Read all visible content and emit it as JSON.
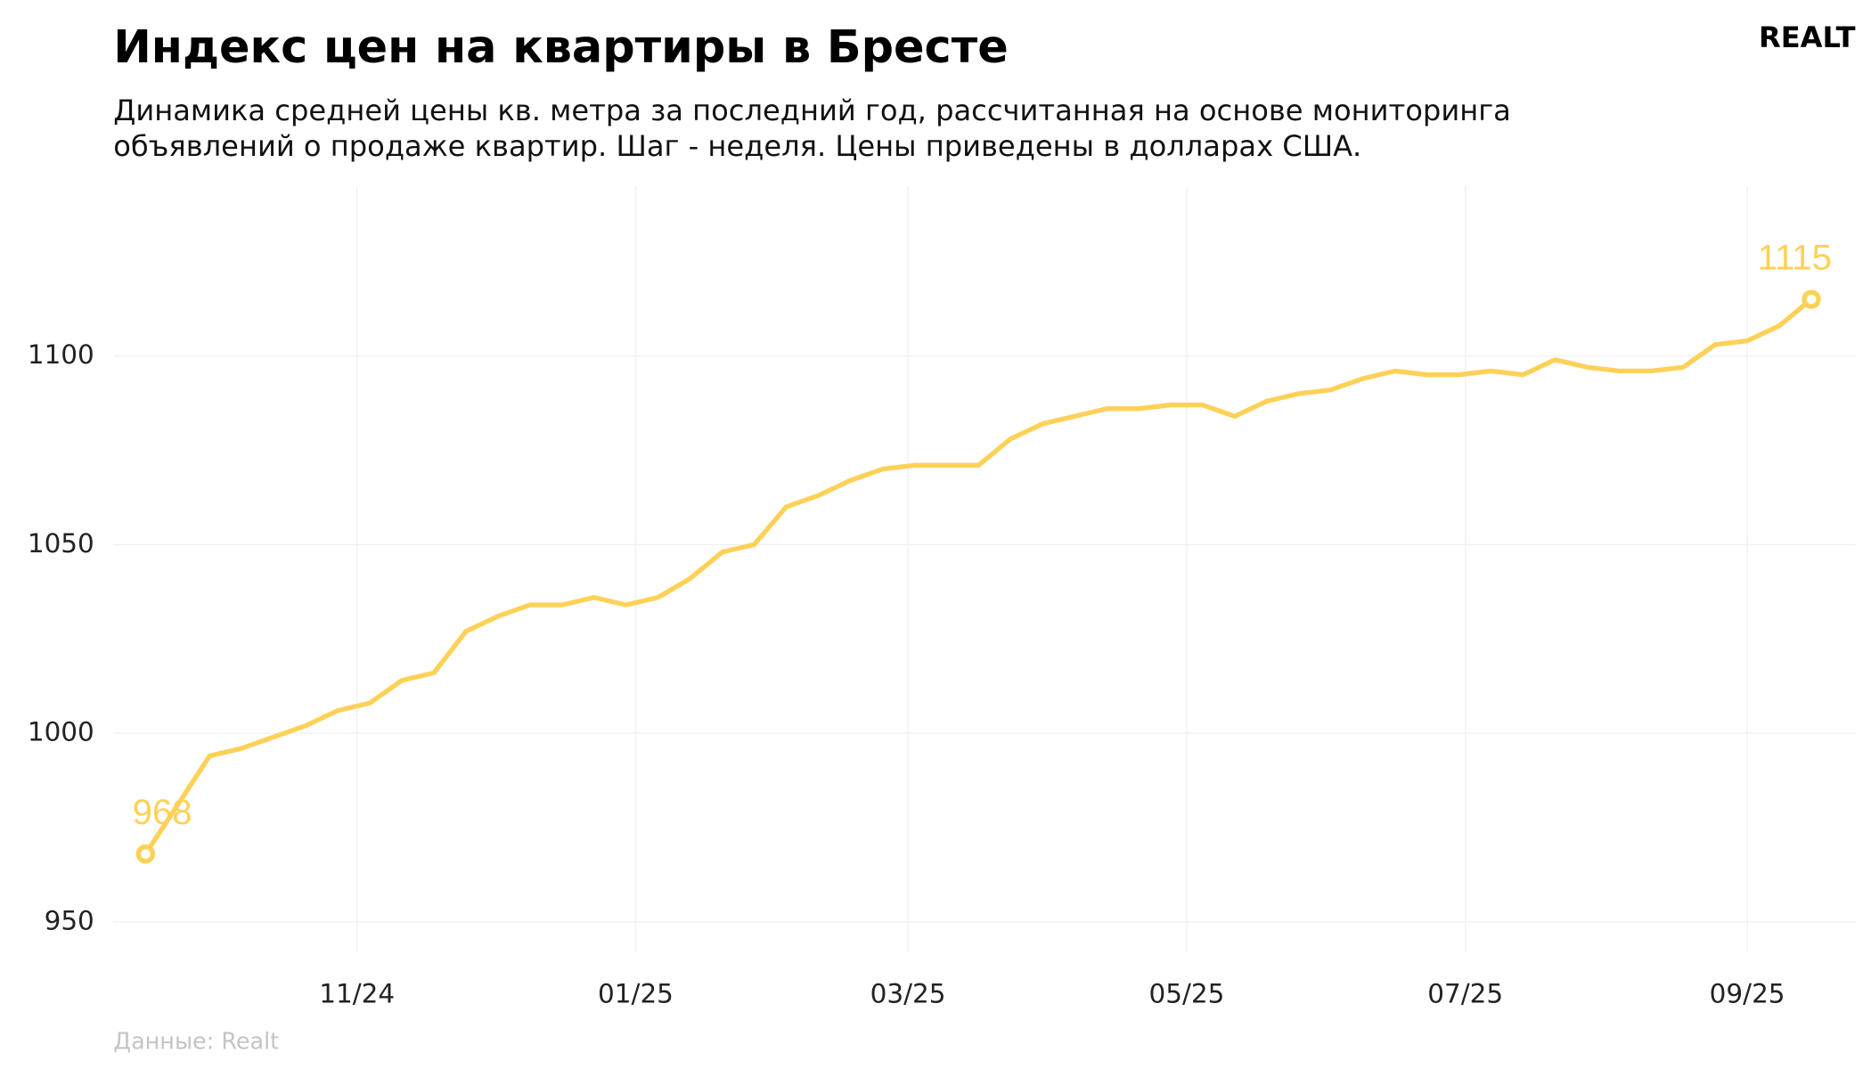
{
  "chart_data": {
    "type": "line",
    "title": "Индекс цен на квартиры в Бресте",
    "subtitle": [
      "Динамика средней цены кв. метра за последний год, рассчитанная на основе мониторинга",
      "объявлений о продаже квартир. Шаг - неделя. Цены приведены в долларах США."
    ],
    "logo": "REALT",
    "source": "Данные: Realt",
    "color": "#fdd157",
    "values": [
      968,
      981,
      994,
      996,
      999,
      1002,
      1006,
      1008,
      1014,
      1016,
      1027,
      1031,
      1034,
      1034,
      1036,
      1034,
      1036,
      1041,
      1048,
      1050,
      1060,
      1063,
      1067,
      1070,
      1071,
      1071,
      1071,
      1078,
      1082,
      1084,
      1086,
      1086,
      1087,
      1087,
      1084,
      1088,
      1090,
      1091,
      1094,
      1096,
      1095,
      1095,
      1096,
      1095,
      1099,
      1097,
      1096,
      1096,
      1097,
      1103,
      1104,
      1108,
      1115
    ],
    "xlim": [
      0,
      52
    ],
    "xticks": [
      {
        "value": 6.6,
        "label": "11/24"
      },
      {
        "value": 15.3,
        "label": "01/25"
      },
      {
        "value": 23.8,
        "label": "03/25"
      },
      {
        "value": 32.5,
        "label": "05/25"
      },
      {
        "value": 41.2,
        "label": "07/25"
      },
      {
        "value": 50.0,
        "label": "09/25"
      }
    ],
    "ylim": [
      942,
      1145
    ],
    "yticks": [
      950,
      1000,
      1050,
      1100
    ],
    "grid": true
  }
}
